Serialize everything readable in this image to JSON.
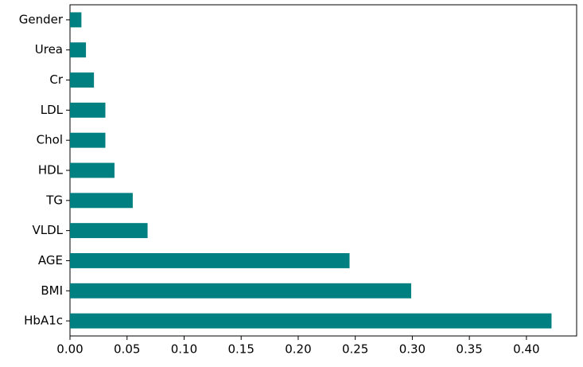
{
  "chart_data": {
    "type": "barh",
    "categories": [
      "HbA1c",
      "BMI",
      "AGE",
      "VLDL",
      "TG",
      "HDL",
      "Chol",
      "LDL",
      "Cr",
      "Urea",
      "Gender"
    ],
    "values": [
      0.422,
      0.299,
      0.245,
      0.068,
      0.055,
      0.039,
      0.031,
      0.031,
      0.021,
      0.014,
      0.01
    ],
    "color": "#008080",
    "xlim": [
      0,
      0.444
    ],
    "xticks": [
      {
        "value": 0,
        "label": "0.00"
      },
      {
        "value": 0.05,
        "label": "0.05"
      },
      {
        "value": 0.1,
        "label": "0.10"
      },
      {
        "value": 0.15,
        "label": "0.15"
      },
      {
        "value": 0.2,
        "label": "0.20"
      },
      {
        "value": 0.25,
        "label": "0.25"
      },
      {
        "value": 0.3,
        "label": "0.30"
      },
      {
        "value": 0.35,
        "label": "0.35"
      },
      {
        "value": 0.4,
        "label": "0.40"
      }
    ]
  }
}
